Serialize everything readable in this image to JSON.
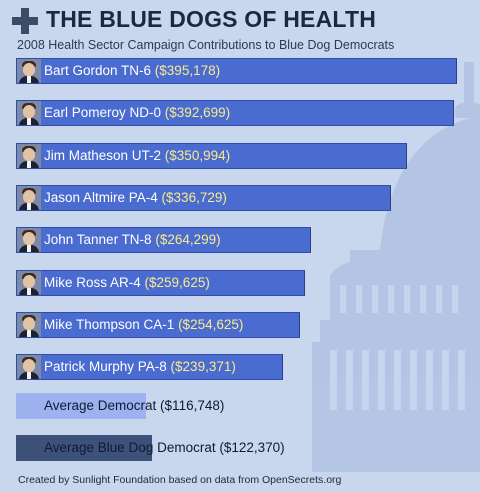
{
  "header": {
    "title": "THE BLUE DOGS OF HEALTH",
    "subtitle": "2008 Health Sector Campaign Contributions to Blue Dog Democrats"
  },
  "footer": "Created by Sunlight Foundation based on data from OpenSecrets.org",
  "colors": {
    "bar": "#4a6bd0",
    "amount_text": "#f8ec8e",
    "average_democrat_bar": "#9db2ef",
    "average_blue_dog_bar": "#3e5178",
    "header_text": "#1e2640"
  },
  "chart_data": {
    "type": "bar",
    "orientation": "horizontal",
    "title": "THE BLUE DOGS OF HEALTH",
    "subtitle": "2008 Health Sector Campaign Contributions to Blue Dog Democrats",
    "categories": [
      "Bart Gordon TN-6",
      "Earl Pomeroy ND-0",
      "Jim Matheson UT-2",
      "Jason Altmire PA-4",
      "John Tanner TN-8",
      "Mike Ross AR-4",
      "Mike Thompson CA-1",
      "Patrick Murphy PA-8"
    ],
    "values": [
      395178,
      392699,
      350994,
      336729,
      264299,
      259625,
      254625,
      239371
    ],
    "amount_labels": [
      "($395,178)",
      "($392,699)",
      "($350,994)",
      "($336,729)",
      "($264,299)",
      "($259,625)",
      "($254,625)",
      "($239,371)"
    ],
    "references": [
      {
        "name": "Average Democrat",
        "value": 116748,
        "amount_label": "($116,748)",
        "color": "#9db2ef"
      },
      {
        "name": "Average Blue Dog Democrat",
        "value": 122370,
        "amount_label": "($122,370)",
        "color": "#3e5178"
      }
    ],
    "xlim": [
      0,
      400000
    ],
    "xlabel": "",
    "ylabel": "",
    "grid": false,
    "legend": "none"
  }
}
